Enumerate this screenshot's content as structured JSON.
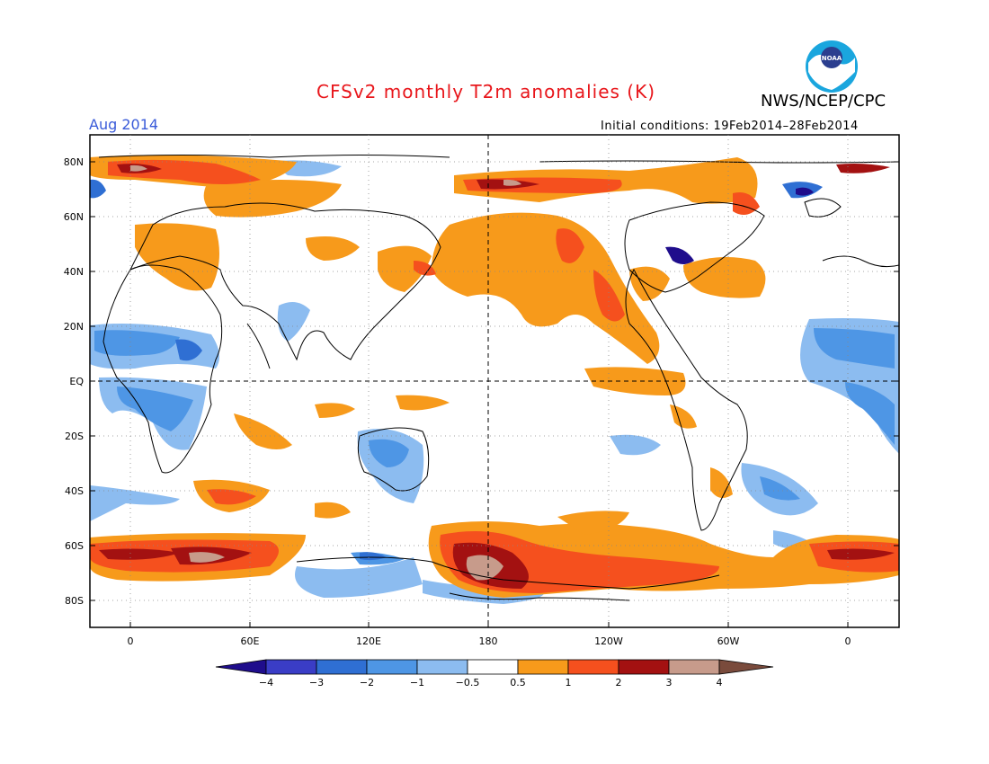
{
  "title": "CFSv2 monthly T2m anomalies (K)",
  "month": "Aug 2014",
  "agency": "NWS/NCEP/CPC",
  "logo_text": "NOAA",
  "initial_conditions": "Initial conditions: 19Feb2014–28Feb2014",
  "lat_labels": [
    "80N",
    "60N",
    "40N",
    "20N",
    "EQ",
    "20S",
    "40S",
    "60S",
    "80S"
  ],
  "lon_labels": [
    "0",
    "60E",
    "120E",
    "180",
    "120W",
    "60W",
    "0"
  ],
  "colorbar": {
    "labels": [
      "−4",
      "−3",
      "−2",
      "−1",
      "−0.5",
      "0.5",
      "1",
      "2",
      "3",
      "4"
    ],
    "colors": [
      "#1f0d8c",
      "#3a3dc6",
      "#2f6fd3",
      "#4e96e5",
      "#8cbcf0",
      "#ffffff",
      "#f79a1b",
      "#f5501e",
      "#a31111",
      "#c79b8b",
      "#7a4b3c"
    ]
  },
  "map_colors": {
    "cold_1": "#8cbcf0",
    "cold_2": "#4e96e5",
    "cold_3": "#2f6fd3",
    "cold_4": "#1f0d8c",
    "warm_1": "#f79a1b",
    "warm_2": "#f5501e",
    "warm_3": "#a31111",
    "warm_4": "#c79b8b"
  }
}
